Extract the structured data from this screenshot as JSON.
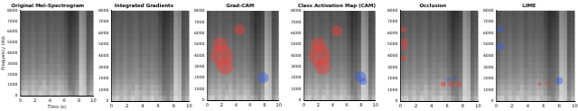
{
  "spectrogram": {
    "time_bins": [
      0,
      0.5,
      1,
      1.5,
      2,
      2.5,
      3,
      3.5,
      4,
      4.5,
      5,
      5.5,
      6,
      6.5,
      7,
      7.5,
      8,
      8.5,
      9,
      9.5,
      10
    ],
    "freq_bins": [
      0,
      500,
      1000,
      1500,
      2000,
      2500,
      3000,
      3500,
      4000,
      4500,
      5000,
      5500,
      6000,
      6500,
      7000,
      7500,
      8000
    ],
    "cell_range": [
      0,
      1
    ],
    "cells": [
      [
        0.75,
        0.8,
        0.7,
        0.78,
        0.72,
        0.8,
        0.76,
        0.7,
        0.78,
        0.74,
        0.8,
        0.72,
        0.7,
        0.6,
        0.55,
        0.65,
        0.85,
        0.8,
        0.6,
        0.7
      ],
      [
        0.65,
        0.7,
        0.68,
        0.72,
        0.66,
        0.7,
        0.74,
        0.68,
        0.7,
        0.66,
        0.72,
        0.7,
        0.62,
        0.5,
        0.5,
        0.6,
        0.8,
        0.78,
        0.55,
        0.62
      ],
      [
        0.6,
        0.66,
        0.62,
        0.68,
        0.64,
        0.62,
        0.7,
        0.6,
        0.66,
        0.62,
        0.68,
        0.64,
        0.58,
        0.45,
        0.48,
        0.55,
        0.8,
        0.75,
        0.5,
        0.58
      ],
      [
        0.55,
        0.6,
        0.58,
        0.62,
        0.58,
        0.6,
        0.62,
        0.56,
        0.6,
        0.58,
        0.62,
        0.58,
        0.52,
        0.42,
        0.45,
        0.5,
        0.78,
        0.72,
        0.48,
        0.55
      ],
      [
        0.5,
        0.55,
        0.52,
        0.58,
        0.54,
        0.56,
        0.58,
        0.52,
        0.56,
        0.52,
        0.56,
        0.54,
        0.48,
        0.4,
        0.42,
        0.48,
        0.75,
        0.7,
        0.45,
        0.5
      ],
      [
        0.48,
        0.52,
        0.5,
        0.55,
        0.5,
        0.52,
        0.55,
        0.5,
        0.52,
        0.5,
        0.54,
        0.5,
        0.45,
        0.38,
        0.4,
        0.45,
        0.72,
        0.68,
        0.42,
        0.48
      ],
      [
        0.45,
        0.5,
        0.48,
        0.52,
        0.48,
        0.5,
        0.52,
        0.46,
        0.5,
        0.48,
        0.5,
        0.48,
        0.42,
        0.35,
        0.38,
        0.42,
        0.7,
        0.66,
        0.4,
        0.45
      ],
      [
        0.42,
        0.48,
        0.45,
        0.5,
        0.46,
        0.48,
        0.5,
        0.44,
        0.48,
        0.45,
        0.48,
        0.45,
        0.4,
        0.32,
        0.36,
        0.4,
        0.68,
        0.64,
        0.38,
        0.42
      ],
      [
        0.4,
        0.46,
        0.44,
        0.48,
        0.44,
        0.45,
        0.48,
        0.42,
        0.45,
        0.44,
        0.46,
        0.43,
        0.38,
        0.3,
        0.34,
        0.38,
        0.66,
        0.62,
        0.36,
        0.4
      ],
      [
        0.4,
        0.44,
        0.42,
        0.46,
        0.42,
        0.44,
        0.46,
        0.4,
        0.44,
        0.42,
        0.44,
        0.42,
        0.36,
        0.28,
        0.32,
        0.36,
        0.64,
        0.6,
        0.35,
        0.38
      ],
      [
        0.38,
        0.42,
        0.4,
        0.44,
        0.4,
        0.42,
        0.44,
        0.38,
        0.42,
        0.4,
        0.42,
        0.4,
        0.34,
        0.26,
        0.3,
        0.34,
        0.62,
        0.58,
        0.34,
        0.36
      ],
      [
        0.36,
        0.4,
        0.38,
        0.42,
        0.38,
        0.4,
        0.42,
        0.36,
        0.4,
        0.38,
        0.4,
        0.38,
        0.32,
        0.24,
        0.28,
        0.32,
        0.6,
        0.56,
        0.32,
        0.35
      ],
      [
        0.35,
        0.38,
        0.36,
        0.4,
        0.36,
        0.38,
        0.4,
        0.35,
        0.38,
        0.36,
        0.38,
        0.36,
        0.3,
        0.22,
        0.26,
        0.3,
        0.58,
        0.55,
        0.3,
        0.34
      ],
      [
        0.34,
        0.36,
        0.35,
        0.38,
        0.35,
        0.36,
        0.38,
        0.34,
        0.36,
        0.35,
        0.36,
        0.35,
        0.28,
        0.2,
        0.24,
        0.28,
        0.56,
        0.52,
        0.3,
        0.32
      ],
      [
        0.32,
        0.35,
        0.34,
        0.36,
        0.34,
        0.35,
        0.36,
        0.32,
        0.35,
        0.34,
        0.35,
        0.34,
        0.26,
        0.2,
        0.22,
        0.26,
        0.55,
        0.5,
        0.28,
        0.3
      ],
      [
        0.3,
        0.34,
        0.32,
        0.35,
        0.32,
        0.34,
        0.35,
        0.3,
        0.34,
        0.32,
        0.34,
        0.32,
        0.25,
        0.18,
        0.2,
        0.25,
        0.52,
        0.48,
        0.28,
        0.3
      ]
    ]
  },
  "chart_data": [
    {
      "type": "heatmap",
      "title": "Original Mel-Spectrogram",
      "x_label": "Time (s)",
      "y_label": "Frequency (Hz)",
      "xlim": [
        0,
        10
      ],
      "xticks": [
        0,
        2,
        4,
        6,
        8,
        10
      ],
      "ylim": [
        0,
        8000
      ],
      "yticks": [
        0,
        1000,
        2000,
        3000,
        4000,
        5000,
        6000,
        7000,
        8000
      ],
      "series": []
    },
    {
      "type": "heatmap",
      "title": "Integrated Gradients",
      "xlim": [
        0,
        10
      ],
      "xticks": [
        0,
        2,
        4,
        6,
        8,
        10
      ],
      "ylim": [
        0,
        8000
      ],
      "yticks": [
        0,
        1000,
        2000,
        3000,
        4000,
        5000,
        6000,
        7000,
        8000
      ],
      "series": []
    },
    {
      "type": "heatmap",
      "title": "Grad-CAM",
      "xlim": [
        0,
        10
      ],
      "xticks": [
        0,
        2,
        4,
        6,
        8,
        10
      ],
      "ylim": [
        0,
        8000
      ],
      "yticks": [
        0,
        1000,
        2000,
        3000,
        4000,
        5000,
        6000,
        7000,
        8000
      ],
      "series": [
        {
          "color": "#e8413c",
          "points": [
            {
              "x": 2,
              "y": 4000,
              "size": 12
            },
            {
              "x": 2.5,
              "y": 3000,
              "size": 9
            },
            {
              "x": 1.8,
              "y": 5000,
              "size": 8
            },
            {
              "x": 4.5,
              "y": 6300,
              "size": 6
            }
          ]
        },
        {
          "color": "#3a5fe0",
          "points": [
            {
              "x": 7.8,
              "y": 2000,
              "size": 6
            }
          ]
        }
      ]
    },
    {
      "type": "heatmap",
      "title": "Class Activation Map (CAM)",
      "xlim": [
        0,
        10
      ],
      "xticks": [
        0,
        2,
        4,
        6,
        8,
        10
      ],
      "ylim": [
        0,
        8000
      ],
      "yticks": [
        0,
        1000,
        2000,
        3000,
        4000,
        5000,
        6000,
        7000,
        8000
      ],
      "series": [
        {
          "color": "#e8413c",
          "points": [
            {
              "x": 2.2,
              "y": 4000,
              "size": 12
            },
            {
              "x": 2.6,
              "y": 3000,
              "size": 9
            },
            {
              "x": 2,
              "y": 5000,
              "size": 8
            },
            {
              "x": 4.6,
              "y": 6200,
              "size": 6
            }
          ]
        },
        {
          "color": "#3a5fe0",
          "points": [
            {
              "x": 7.9,
              "y": 2100,
              "size": 6
            },
            {
              "x": 8.3,
              "y": 1700,
              "size": 4
            }
          ]
        }
      ]
    },
    {
      "type": "heatmap",
      "title": "Occlusion",
      "xlim": [
        0,
        10
      ],
      "xticks": [
        0,
        2,
        4,
        6,
        8,
        10
      ],
      "ylim": [
        0,
        8000
      ],
      "yticks": [
        0,
        1000,
        2000,
        3000,
        4000,
        5000,
        6000,
        7000,
        8000
      ],
      "series": [
        {
          "color": "#e8413c",
          "points": [
            {
              "x": 0.4,
              "y": 6300,
              "size": 3
            },
            {
              "x": 0.5,
              "y": 5200,
              "size": 4
            },
            {
              "x": 0.5,
              "y": 4700,
              "size": 3
            },
            {
              "x": 0.4,
              "y": 3800,
              "size": 3
            },
            {
              "x": 5.5,
              "y": 1500,
              "size": 3
            },
            {
              "x": 6.5,
              "y": 1500,
              "size": 3
            },
            {
              "x": 7.5,
              "y": 1500,
              "size": 3
            }
          ]
        },
        {
          "color": "#3a5fe0",
          "points": [
            {
              "x": 6.2,
              "y": 1900,
              "size": 2
            },
            {
              "x": 7,
              "y": 2000,
              "size": 2
            }
          ]
        }
      ]
    },
    {
      "type": "heatmap",
      "title": "LIME",
      "xlim": [
        0,
        10
      ],
      "xticks": [
        0,
        2,
        4,
        6,
        8,
        10
      ],
      "ylim": [
        0,
        8000
      ],
      "yticks": [
        0,
        1000,
        2000,
        3000,
        4000,
        5000,
        6000,
        7000,
        8000
      ],
      "series": [
        {
          "color": "#e8413c",
          "points": [
            {
              "x": 5.5,
              "y": 1500,
              "size": 2
            },
            {
              "x": 6.5,
              "y": 1500,
              "size": 2
            }
          ]
        },
        {
          "color": "#3a5fe0",
          "points": [
            {
              "x": 0.5,
              "y": 6300,
              "size": 3
            },
            {
              "x": 0.5,
              "y": 4800,
              "size": 4
            },
            {
              "x": 8,
              "y": 1800,
              "size": 4
            }
          ]
        }
      ]
    }
  ]
}
